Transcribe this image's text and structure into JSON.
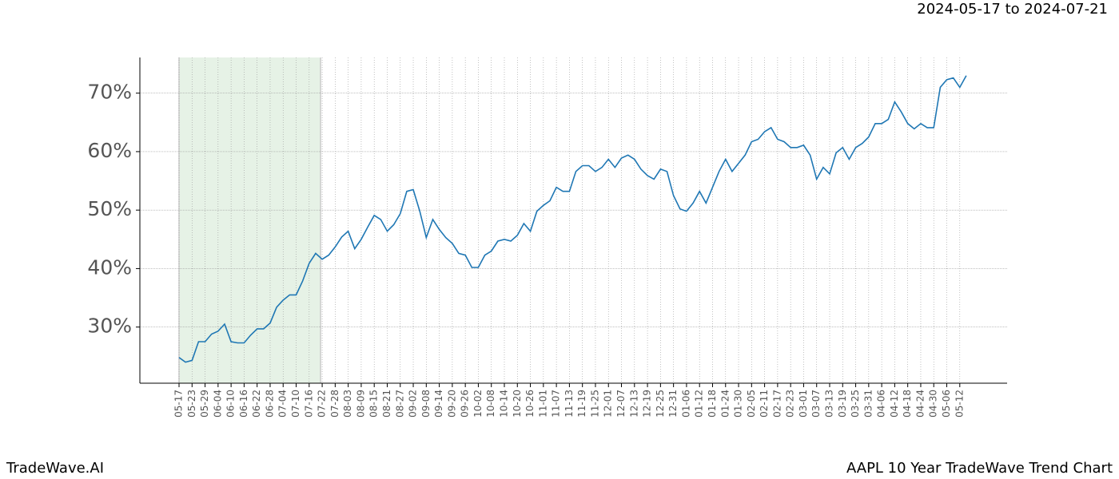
{
  "chart_data": {
    "type": "line",
    "title": "2024-05-17 to 2024-07-21",
    "footer_left": "TradeWave.AI",
    "footer_right": "AAPL 10 Year TradeWave Trend Chart",
    "categories": [
      "05-17",
      null,
      "05-23",
      null,
      "05-29",
      null,
      "06-04",
      null,
      "06-10",
      null,
      "06-16",
      null,
      "06-22",
      null,
      "06-28",
      null,
      "07-04",
      null,
      "07-10",
      null,
      "07-16",
      null,
      "07-22",
      null,
      "07-28",
      null,
      "08-03",
      null,
      "08-09",
      null,
      "08-15",
      null,
      "08-21",
      null,
      "08-27",
      null,
      "09-02",
      null,
      "09-08",
      null,
      "09-14",
      null,
      "09-20",
      null,
      "09-26",
      null,
      "10-02",
      null,
      "10-08",
      null,
      "10-14",
      null,
      "10-20",
      null,
      "10-26",
      null,
      "11-01",
      null,
      "11-07",
      null,
      "11-13",
      null,
      "11-19",
      null,
      "11-25",
      null,
      "12-01",
      null,
      "12-07",
      null,
      "12-13",
      null,
      "12-19",
      null,
      "12-25",
      null,
      "12-31",
      null,
      "01-06",
      null,
      "01-12",
      null,
      "01-18",
      null,
      "01-24",
      null,
      "01-30",
      null,
      "02-05",
      null,
      "02-11",
      null,
      "02-17",
      null,
      "02-23",
      null,
      "03-01",
      null,
      "03-07",
      null,
      "03-13",
      null,
      "03-19",
      null,
      "03-25",
      null,
      "03-31",
      null,
      "04-06",
      null,
      "04-12",
      null,
      "04-18",
      null,
      "04-24",
      null,
      "04-30",
      null,
      "05-06",
      null,
      "05-12",
      null
    ],
    "series": [
      {
        "name": "AAPL",
        "color": "#1f77b4",
        "values": [
          24.8,
          24.0,
          24.3,
          27.5,
          27.5,
          28.8,
          29.3,
          30.5,
          27.5,
          27.3,
          27.3,
          28.6,
          29.7,
          29.7,
          30.7,
          33.4,
          34.6,
          35.5,
          35.5,
          37.9,
          40.9,
          42.6,
          41.6,
          42.3,
          43.7,
          45.4,
          46.4,
          43.4,
          45.0,
          47.1,
          49.1,
          48.4,
          46.4,
          47.5,
          49.4,
          53.2,
          53.5,
          49.8,
          45.3,
          48.4,
          46.7,
          45.3,
          44.3,
          42.6,
          42.3,
          40.2,
          40.2,
          42.3,
          43.0,
          44.7,
          45.0,
          44.7,
          45.7,
          47.7,
          46.4,
          49.8,
          50.8,
          51.6,
          53.9,
          53.2,
          53.2,
          56.6,
          57.6,
          57.6,
          56.6,
          57.3,
          58.7,
          57.3,
          58.9,
          59.4,
          58.7,
          57.0,
          55.9,
          55.3,
          57.0,
          56.6,
          52.5,
          50.2,
          49.8,
          51.2,
          53.2,
          51.2,
          53.9,
          56.6,
          58.7,
          56.6,
          58.0,
          59.4,
          61.7,
          62.1,
          63.4,
          64.1,
          62.1,
          61.7,
          60.7,
          60.7,
          61.1,
          59.4,
          55.3,
          57.3,
          56.2,
          59.8,
          60.7,
          58.7,
          60.7,
          61.4,
          62.5,
          64.8,
          64.8,
          65.5,
          68.5,
          66.8,
          64.8,
          63.9,
          64.8,
          64.1,
          64.1,
          71.0,
          72.3,
          72.6,
          71.0,
          73.0
        ]
      }
    ],
    "highlight": {
      "from": "05-17",
      "to": "07-22",
      "color": "#e6f2e6"
    },
    "ylim": [
      20.4,
      76.1
    ],
    "yticks": [
      {
        "value": 30,
        "label": "30%"
      },
      {
        "value": 40,
        "label": "40%"
      },
      {
        "value": 50,
        "label": "50%"
      },
      {
        "value": 60,
        "label": "60%"
      },
      {
        "value": 70,
        "label": "70%"
      }
    ],
    "grid": true
  }
}
